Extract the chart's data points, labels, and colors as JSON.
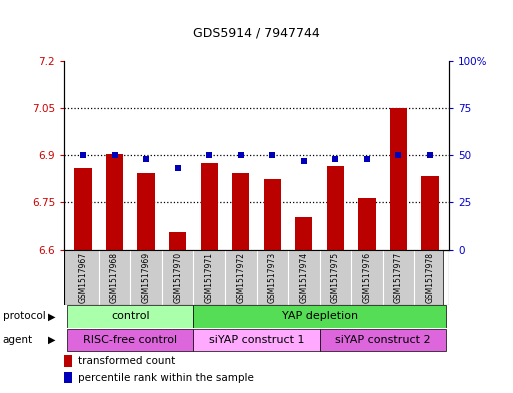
{
  "title": "GDS5914 / 7947744",
  "samples": [
    "GSM1517967",
    "GSM1517968",
    "GSM1517969",
    "GSM1517970",
    "GSM1517971",
    "GSM1517972",
    "GSM1517973",
    "GSM1517974",
    "GSM1517975",
    "GSM1517976",
    "GSM1517977",
    "GSM1517978"
  ],
  "transformed_counts": [
    6.86,
    6.905,
    6.845,
    6.655,
    6.875,
    6.845,
    6.825,
    6.705,
    6.865,
    6.765,
    7.05,
    6.835
  ],
  "percentile_ranks": [
    50,
    50,
    48,
    43,
    50,
    50,
    50,
    47,
    48,
    48,
    50,
    50
  ],
  "ylim_left": [
    6.6,
    7.2
  ],
  "ylim_right": [
    0,
    100
  ],
  "yticks_left": [
    6.6,
    6.75,
    6.9,
    7.05,
    7.2
  ],
  "yticks_right": [
    0,
    25,
    50,
    75,
    100
  ],
  "ytick_labels_left": [
    "6.6",
    "6.75",
    "6.9",
    "7.05",
    "7.2"
  ],
  "ytick_labels_right": [
    "0",
    "25",
    "50",
    "75",
    "100%"
  ],
  "hlines": [
    6.75,
    6.9,
    7.05
  ],
  "bar_color": "#bb0000",
  "dot_color": "#0000bb",
  "bar_width": 0.55,
  "protocol_groups": [
    {
      "label": "control",
      "start": 0,
      "end": 3,
      "color": "#aaffaa"
    },
    {
      "label": "YAP depletion",
      "start": 4,
      "end": 11,
      "color": "#55dd55"
    }
  ],
  "agent_groups": [
    {
      "label": "RISC-free control",
      "start": 0,
      "end": 3,
      "color": "#dd66dd"
    },
    {
      "label": "siYAP construct 1",
      "start": 4,
      "end": 7,
      "color": "#ffaaff"
    },
    {
      "label": "siYAP construct 2",
      "start": 8,
      "end": 11,
      "color": "#dd66dd"
    }
  ],
  "legend_items": [
    {
      "label": "transformed count",
      "color": "#bb0000"
    },
    {
      "label": "percentile rank within the sample",
      "color": "#0000bb"
    }
  ],
  "protocol_label": "protocol",
  "agent_label": "agent",
  "sample_bg_color": "#cccccc",
  "n_samples": 12,
  "fig_width": 5.13,
  "fig_height": 3.93
}
